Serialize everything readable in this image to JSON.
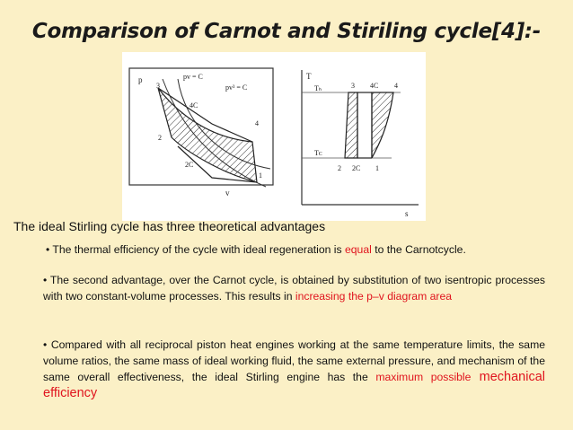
{
  "title": "Comparison of Carnot and Stiriling cycle[4]:-",
  "figure": {
    "pv_axis_y": "p",
    "pv_axis_x": "v",
    "ts_axis_y": "T",
    "ts_axis_x": "s",
    "pv_eq1": "pv = C",
    "pv_eq2": "pv³ = C",
    "pv_points": [
      "3",
      "4C",
      "4",
      "2C",
      "1",
      "2"
    ],
    "ts_points": [
      "3",
      "4C",
      "4",
      "2",
      "2C",
      "1"
    ],
    "th": "Tₕ",
    "tc": "Tᴄ"
  },
  "intro": "The ideal Stirling cycle has three theoretical advantages",
  "bullet1": {
    "marker": "•",
    "text_before": " The thermal efficiency of the cycle with ideal regeneration is ",
    "highlight": "equal",
    "text_after": " to the Carnotcycle."
  },
  "bullet2": {
    "marker": "•",
    "text_before": "  The second advantage, over the Carnot cycle, is obtained by substitution of two isentropic      processes with two constant-volume processes. This results in ",
    "highlight": "increasing the p–v diagram area"
  },
  "bullet3": {
    "marker": "•",
    "text_before": "   Compared with all reciprocal piston heat engines working at the same temperature limits, the same volume ratios, the same mass of ideal working fluid, the same external pressure, and mechanism of the same overall effectiveness, the ideal Stirling engine has the ",
    "highlight1": "maximum possible",
    "highlight2": " mechanical efficiency"
  },
  "colors": {
    "background": "#fbf0c6",
    "highlight": "#e0141e"
  }
}
